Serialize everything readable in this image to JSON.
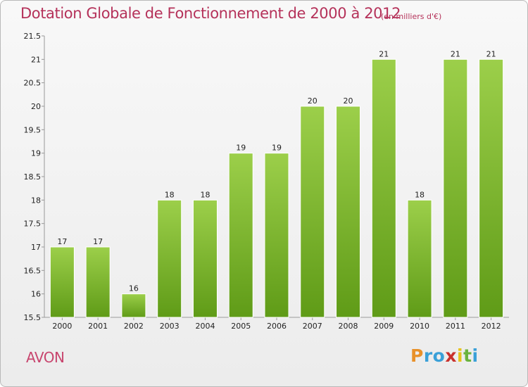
{
  "header": {
    "title": "Dotation Globale de Fonctionnement de 2000 à 2012",
    "subtitle": "(en milliers d'€)"
  },
  "footer": {
    "commune": "AVON",
    "logo": [
      "P",
      "r",
      "o",
      "x",
      "i",
      "t",
      "i"
    ],
    "logo_colors": [
      "#e8912a",
      "#3aa0d8",
      "#3aa0d8",
      "#c9302c",
      "#e8c21b",
      "#6ab33e",
      "#3aa0d8"
    ]
  },
  "colors": {
    "bar_top": "#9ccf4a",
    "bar_bottom": "#5f9b17",
    "title": "#b5325a"
  },
  "chart_data": {
    "type": "bar",
    "title": "Dotation Globale de Fonctionnement de 2000 à 2012",
    "subtitle": "(en milliers d'€)",
    "categories": [
      "2000",
      "2001",
      "2002",
      "2003",
      "2004",
      "2005",
      "2006",
      "2007",
      "2008",
      "2009",
      "2010",
      "2011",
      "2012"
    ],
    "values": [
      17,
      17,
      16,
      18,
      18,
      19,
      19,
      20,
      20,
      21,
      18,
      21,
      21
    ],
    "ylim": [
      15.5,
      21.5
    ],
    "yticks": [
      "15.5",
      "16",
      "16.5",
      "17",
      "17.5",
      "18",
      "18.5",
      "19",
      "19.5",
      "20",
      "20.5",
      "21",
      "21.5"
    ],
    "grid": false
  }
}
